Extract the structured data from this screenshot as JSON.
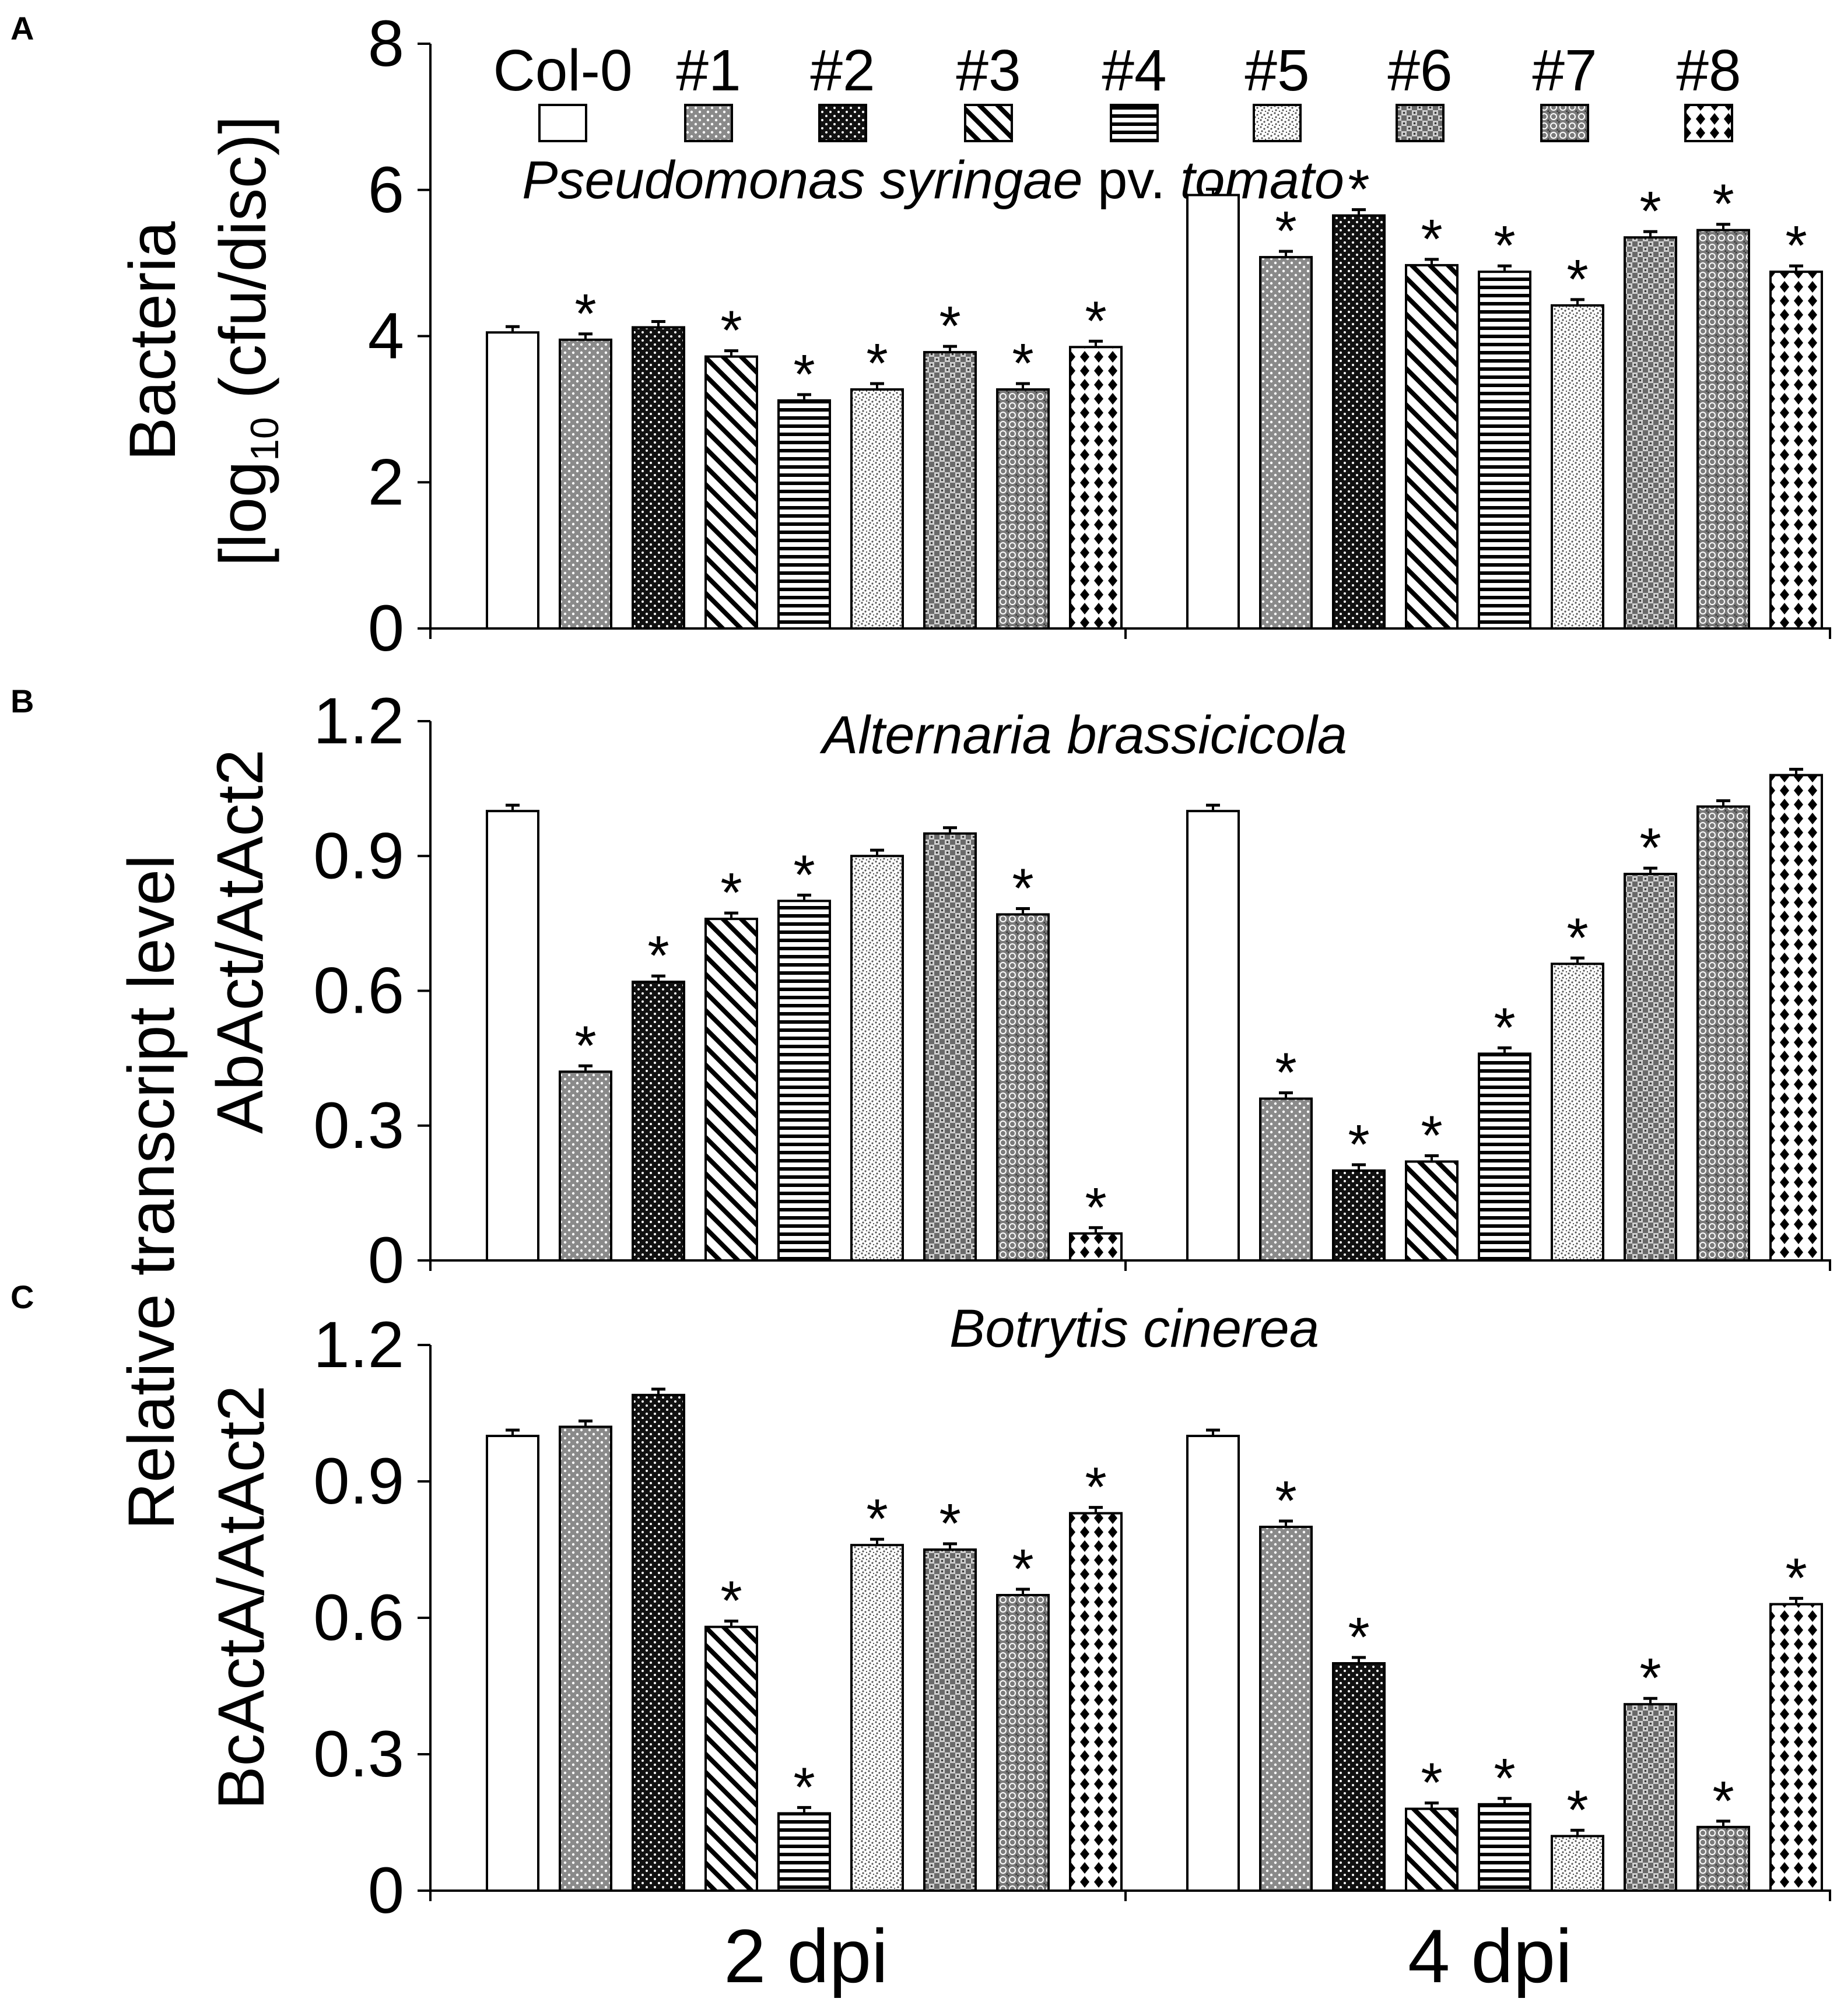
{
  "chart_data": [
    {
      "panel": "A",
      "type": "bar",
      "title": "Pseudomonas syringae pv. tomato",
      "title_italic": [
        "Pseudomonas syringae",
        "tomato"
      ],
      "ylabel": "Bacteria",
      "ylabel2": "[log10 (cfu/disc)]",
      "ylabel2_parts": {
        "pre": "[log",
        "sub": "10",
        "post": " (cfu/disc)]"
      },
      "ylim": [
        0,
        8
      ],
      "yticks": [
        "0",
        "2",
        "4",
        "6",
        "8"
      ],
      "ytick_values": [
        0,
        2,
        4,
        6,
        8
      ],
      "categories": [
        "2 dpi",
        "4 dpi"
      ],
      "series": [
        {
          "name": "Col-0",
          "values": [
            4.05,
            5.93
          ],
          "sig": [
            false,
            false
          ]
        },
        {
          "name": "#1",
          "values": [
            3.95,
            5.08
          ],
          "sig": [
            true,
            true
          ]
        },
        {
          "name": "#2",
          "values": [
            4.12,
            5.65
          ],
          "sig": [
            false,
            true
          ]
        },
        {
          "name": "#3",
          "values": [
            3.72,
            4.97
          ],
          "sig": [
            true,
            true
          ]
        },
        {
          "name": "#4",
          "values": [
            3.12,
            4.88
          ],
          "sig": [
            true,
            true
          ]
        },
        {
          "name": "#5",
          "values": [
            3.27,
            4.42
          ],
          "sig": [
            true,
            true
          ]
        },
        {
          "name": "#6",
          "values": [
            3.78,
            5.35
          ],
          "sig": [
            true,
            true
          ]
        },
        {
          "name": "#7",
          "values": [
            3.27,
            5.45
          ],
          "sig": [
            true,
            true
          ]
        },
        {
          "name": "#8",
          "values": [
            3.85,
            4.88
          ],
          "sig": [
            true,
            true
          ]
        }
      ]
    },
    {
      "panel": "B",
      "type": "bar",
      "title": "Alternaria brassicicola",
      "ylabel": "AbAct/AtAct2",
      "ylim": [
        0,
        1.2
      ],
      "yticks": [
        "0",
        "0.3",
        "0.6",
        "0.9",
        "1.2"
      ],
      "ytick_values": [
        0,
        0.3,
        0.6,
        0.9,
        1.2
      ],
      "categories": [
        "2 dpi",
        "4 dpi"
      ],
      "series": [
        {
          "name": "Col-0",
          "values": [
            1.0,
            1.0
          ],
          "sig": [
            false,
            false
          ]
        },
        {
          "name": "#1",
          "values": [
            0.42,
            0.36
          ],
          "sig": [
            true,
            true
          ]
        },
        {
          "name": "#2",
          "values": [
            0.62,
            0.2
          ],
          "sig": [
            true,
            true
          ]
        },
        {
          "name": "#3",
          "values": [
            0.76,
            0.22
          ],
          "sig": [
            true,
            true
          ]
        },
        {
          "name": "#4",
          "values": [
            0.8,
            0.46
          ],
          "sig": [
            true,
            true
          ]
        },
        {
          "name": "#5",
          "values": [
            0.9,
            0.66
          ],
          "sig": [
            false,
            true
          ]
        },
        {
          "name": "#6",
          "values": [
            0.95,
            0.86
          ],
          "sig": [
            false,
            true
          ]
        },
        {
          "name": "#7",
          "values": [
            0.77,
            1.01
          ],
          "sig": [
            true,
            false
          ]
        },
        {
          "name": "#8",
          "values": [
            0.06,
            1.08
          ],
          "sig": [
            true,
            false
          ]
        }
      ]
    },
    {
      "panel": "C",
      "type": "bar",
      "title": "Botrytis cinerea",
      "ylabel": "BcActA/AtAct2",
      "ylim": [
        0,
        1.2
      ],
      "yticks": [
        "0",
        "0.3",
        "0.6",
        "0.9",
        "1.2"
      ],
      "ytick_values": [
        0,
        0.3,
        0.6,
        0.9,
        1.2
      ],
      "categories": [
        "2 dpi",
        "4 dpi"
      ],
      "series": [
        {
          "name": "Col-0",
          "values": [
            1.0,
            1.0
          ],
          "sig": [
            false,
            false
          ]
        },
        {
          "name": "#1",
          "values": [
            1.02,
            0.8
          ],
          "sig": [
            false,
            true
          ]
        },
        {
          "name": "#2",
          "values": [
            1.09,
            0.5
          ],
          "sig": [
            false,
            true
          ]
        },
        {
          "name": "#3",
          "values": [
            0.58,
            0.18
          ],
          "sig": [
            true,
            true
          ]
        },
        {
          "name": "#4",
          "values": [
            0.17,
            0.19
          ],
          "sig": [
            true,
            true
          ]
        },
        {
          "name": "#5",
          "values": [
            0.76,
            0.12
          ],
          "sig": [
            true,
            true
          ]
        },
        {
          "name": "#6",
          "values": [
            0.75,
            0.41
          ],
          "sig": [
            true,
            true
          ]
        },
        {
          "name": "#7",
          "values": [
            0.65,
            0.14
          ],
          "sig": [
            true,
            true
          ]
        },
        {
          "name": "#8",
          "values": [
            0.83,
            0.63
          ],
          "sig": [
            true,
            true
          ]
        }
      ]
    }
  ],
  "shared_ylabel": "Relative transcript level",
  "significance_marker": "*",
  "legend": [
    "Col-0",
    "#1",
    "#2",
    "#3",
    "#4",
    "#5",
    "#6",
    "#7",
    "#8"
  ],
  "patterns": [
    "none",
    "dots",
    "dark-dots",
    "diagonal",
    "horizontal",
    "speckle",
    "checker",
    "circles",
    "diamonds"
  ],
  "colors": {
    "ink": "#000000",
    "paper": "#ffffff",
    "mid_gray": "#8a8a8a",
    "dark": "#111111"
  }
}
